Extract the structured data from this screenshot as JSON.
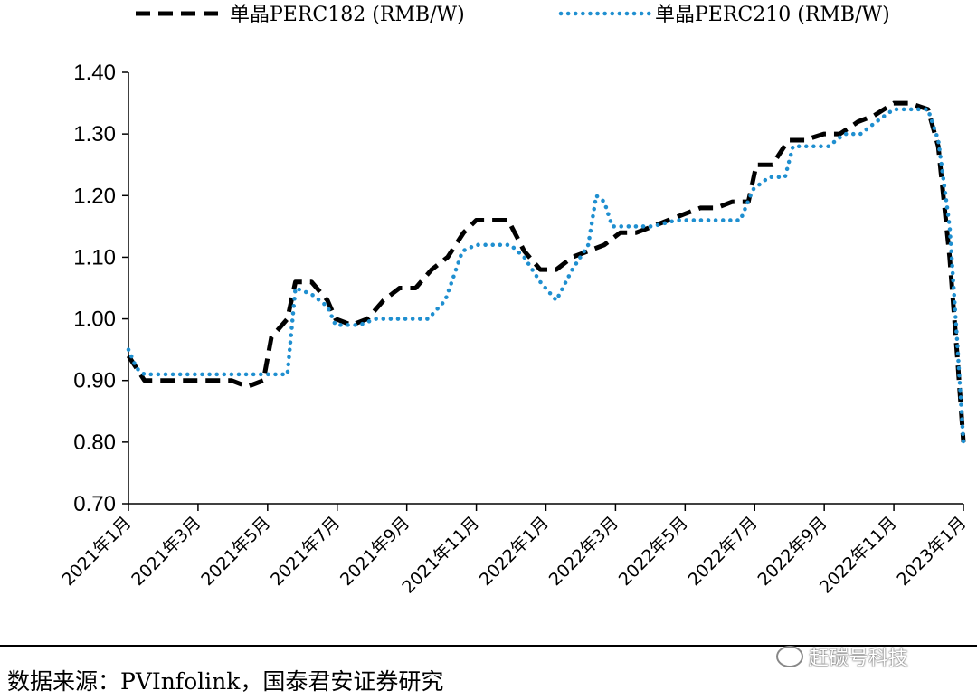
{
  "chart_data": {
    "type": "line",
    "legend": {
      "placement": "top"
    },
    "ylim": [
      0.7,
      1.4
    ],
    "y_ticks": [
      "0.70",
      "0.80",
      "0.90",
      "1.00",
      "1.10",
      "1.20",
      "1.30",
      "1.40"
    ],
    "x_ticks": [
      "2021年1月",
      "2021年3月",
      "2021年5月",
      "2021年7月",
      "2021年9月",
      "2021年11月",
      "2022年1月",
      "2022年3月",
      "2022年5月",
      "2022年7月",
      "2022年9月",
      "2022年11月",
      "2023年1月"
    ],
    "x_range": [
      "2021-01-01",
      "2023-01-01"
    ],
    "series": [
      {
        "name": "单晶PERC182 (RMB/W)",
        "color": "#000000",
        "style": "dashed",
        "points": [
          [
            "2021-01-01",
            0.94
          ],
          [
            "2021-01-08",
            0.92
          ],
          [
            "2021-01-15",
            0.9
          ],
          [
            "2021-02-01",
            0.9
          ],
          [
            "2021-03-01",
            0.9
          ],
          [
            "2021-04-01",
            0.9
          ],
          [
            "2021-04-15",
            0.89
          ],
          [
            "2021-04-29",
            0.9
          ],
          [
            "2021-05-06",
            0.97
          ],
          [
            "2021-05-20",
            1.0
          ],
          [
            "2021-05-27",
            1.06
          ],
          [
            "2021-06-10",
            1.06
          ],
          [
            "2021-06-24",
            1.03
          ],
          [
            "2021-07-01",
            1.0
          ],
          [
            "2021-07-15",
            0.99
          ],
          [
            "2021-07-29",
            1.0
          ],
          [
            "2021-08-12",
            1.03
          ],
          [
            "2021-08-26",
            1.05
          ],
          [
            "2021-09-09",
            1.05
          ],
          [
            "2021-09-23",
            1.08
          ],
          [
            "2021-10-07",
            1.1
          ],
          [
            "2021-10-21",
            1.14
          ],
          [
            "2021-11-01",
            1.16
          ],
          [
            "2021-11-15",
            1.16
          ],
          [
            "2021-11-29",
            1.16
          ],
          [
            "2021-12-13",
            1.11
          ],
          [
            "2021-12-27",
            1.08
          ],
          [
            "2022-01-10",
            1.08
          ],
          [
            "2022-01-24",
            1.1
          ],
          [
            "2022-02-07",
            1.11
          ],
          [
            "2022-02-21",
            1.12
          ],
          [
            "2022-03-07",
            1.14
          ],
          [
            "2022-03-21",
            1.14
          ],
          [
            "2022-04-04",
            1.15
          ],
          [
            "2022-04-18",
            1.16
          ],
          [
            "2022-05-02",
            1.17
          ],
          [
            "2022-05-16",
            1.18
          ],
          [
            "2022-05-30",
            1.18
          ],
          [
            "2022-06-13",
            1.19
          ],
          [
            "2022-06-27",
            1.19
          ],
          [
            "2022-07-04",
            1.25
          ],
          [
            "2022-07-18",
            1.25
          ],
          [
            "2022-08-01",
            1.29
          ],
          [
            "2022-08-15",
            1.29
          ],
          [
            "2022-09-01",
            1.3
          ],
          [
            "2022-09-15",
            1.3
          ],
          [
            "2022-10-01",
            1.32
          ],
          [
            "2022-10-15",
            1.33
          ],
          [
            "2022-11-01",
            1.35
          ],
          [
            "2022-11-15",
            1.35
          ],
          [
            "2022-12-01",
            1.34
          ],
          [
            "2022-12-10",
            1.28
          ],
          [
            "2022-12-20",
            1.1
          ],
          [
            "2022-12-27",
            0.93
          ],
          [
            "2023-01-01",
            0.8
          ]
        ]
      },
      {
        "name": "单晶PERC210 (RMB/W)",
        "color": "#1f8fd0",
        "style": "dotted",
        "points": [
          [
            "2021-01-01",
            0.95
          ],
          [
            "2021-01-08",
            0.92
          ],
          [
            "2021-01-15",
            0.91
          ],
          [
            "2021-02-01",
            0.91
          ],
          [
            "2021-03-01",
            0.91
          ],
          [
            "2021-04-01",
            0.91
          ],
          [
            "2021-05-01",
            0.91
          ],
          [
            "2021-05-20",
            0.91
          ],
          [
            "2021-05-27",
            1.05
          ],
          [
            "2021-06-10",
            1.04
          ],
          [
            "2021-06-24",
            1.02
          ],
          [
            "2021-07-01",
            0.99
          ],
          [
            "2021-07-22",
            0.99
          ],
          [
            "2021-08-05",
            1.0
          ],
          [
            "2021-09-01",
            1.0
          ],
          [
            "2021-09-20",
            1.0
          ],
          [
            "2021-10-05",
            1.03
          ],
          [
            "2021-10-20",
            1.11
          ],
          [
            "2021-11-01",
            1.12
          ],
          [
            "2021-11-15",
            1.12
          ],
          [
            "2021-12-01",
            1.12
          ],
          [
            "2021-12-13",
            1.1
          ],
          [
            "2021-12-27",
            1.06
          ],
          [
            "2022-01-10",
            1.03
          ],
          [
            "2022-01-24",
            1.08
          ],
          [
            "2022-02-07",
            1.12
          ],
          [
            "2022-02-14",
            1.2
          ],
          [
            "2022-02-21",
            1.19
          ],
          [
            "2022-02-28",
            1.15
          ],
          [
            "2022-03-14",
            1.15
          ],
          [
            "2022-04-04",
            1.15
          ],
          [
            "2022-04-25",
            1.16
          ],
          [
            "2022-05-16",
            1.16
          ],
          [
            "2022-06-06",
            1.16
          ],
          [
            "2022-06-20",
            1.16
          ],
          [
            "2022-07-01",
            1.21
          ],
          [
            "2022-07-15",
            1.23
          ],
          [
            "2022-07-29",
            1.23
          ],
          [
            "2022-08-05",
            1.28
          ],
          [
            "2022-08-22",
            1.28
          ],
          [
            "2022-09-05",
            1.28
          ],
          [
            "2022-09-19",
            1.3
          ],
          [
            "2022-10-03",
            1.3
          ],
          [
            "2022-10-17",
            1.32
          ],
          [
            "2022-11-01",
            1.34
          ],
          [
            "2022-11-15",
            1.34
          ],
          [
            "2022-12-01",
            1.34
          ],
          [
            "2022-12-10",
            1.29
          ],
          [
            "2022-12-20",
            1.15
          ],
          [
            "2022-12-27",
            0.95
          ],
          [
            "2023-01-01",
            0.8
          ]
        ]
      }
    ]
  },
  "source": "数据来源：PVInfolink，国泰君安证券研究",
  "watermark": "赶碳号科技"
}
